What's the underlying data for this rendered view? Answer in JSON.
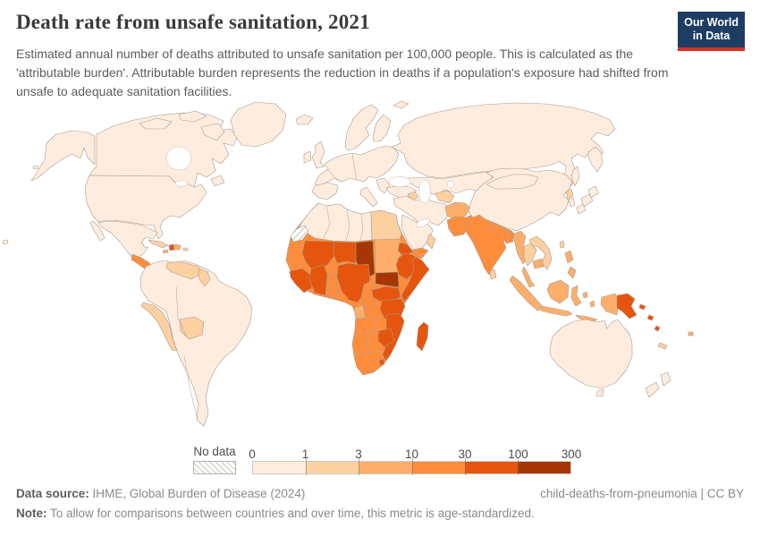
{
  "header": {
    "title": "Death rate from unsafe sanitation, 2021",
    "subtitle": "Estimated annual number of deaths attributed to unsafe sanitation per 100,000 people. This is calculated as the 'attributable burden'. Attributable burden represents the reduction in deaths if a population's exposure had shifted from unsafe to adequate sanitation facilities.",
    "logo": {
      "line1": "Our World",
      "line2": "in Data",
      "bg_color": "#1d3d63",
      "accent_color": "#d93025"
    }
  },
  "legend": {
    "no_data_label": "No data",
    "tick_labels": [
      "0",
      "1",
      "3",
      "10",
      "30",
      "100",
      "300"
    ],
    "colors": [
      "#feedde",
      "#fdd0a2",
      "#fdae6b",
      "#fd8d3c",
      "#e6550d",
      "#a63603"
    ]
  },
  "footer": {
    "source_label": "Data source:",
    "source_text": " IHME, Global Burden of Disease (2024)",
    "attribution": "child-deaths-from-pneumonia | CC BY",
    "note_label": "Note:",
    "note_text": " To allow for comparisons between countries and over time, this metric is age-standardized."
  },
  "chart_data": {
    "type": "choropleth",
    "title": "Death rate from unsafe sanitation, 2021",
    "metric": "Deaths attributed to unsafe sanitation per 100,000 people (age-standardized)",
    "legend_scale": [
      0,
      1,
      3,
      10,
      30,
      100,
      300
    ],
    "bucket_ranges": [
      "0-1",
      "1-3",
      "3-10",
      "10-30",
      "30-100",
      "100-300"
    ],
    "palette": [
      "#feedde",
      "#fdd0a2",
      "#fdae6b",
      "#fd8d3c",
      "#e6550d",
      "#a63603"
    ],
    "no_data_regions": [
      "western-sahara"
    ],
    "regions": {
      "united-states": 0,
      "canada": 0,
      "greenland": 0,
      "mexico": 0,
      "central-america": 3,
      "cuba": 1,
      "haiti": 4,
      "dominican-republic": 2,
      "jamaica": 2,
      "puerto-rico": 1,
      "south-america-mainland": 0,
      "peru": 1,
      "venezuela": 1,
      "guyana": 1,
      "bolivia": 1,
      "iceland": 0,
      "united-kingdom": 0,
      "ireland": 0,
      "scandinavia": 0,
      "finland": 0,
      "europe": 0,
      "iberia": 0,
      "italy": 0,
      "balkans": 0,
      "svalbard": 0,
      "russia": 0,
      "kazakhstan-central-asia": 0,
      "turkey": 0,
      "azerbaijan": 1,
      "turkmenistan": 1,
      "iran-iraq": 0,
      "saudi-arabia": 0,
      "yemen": 3,
      "oman": 1,
      "afghanistan": 2,
      "pakistan": 3,
      "india": 3,
      "bangladesh": 3,
      "sri-lanka": 1,
      "china": 0,
      "mongolia": 0,
      "north-korea": 1,
      "south-korea": 0,
      "japan": 0,
      "taiwan": 1,
      "myanmar": 2,
      "thailand": 1,
      "laos-vietnam": 1,
      "cambodia": 2,
      "malaysia": 2,
      "indonesia": 2,
      "philippines": 2,
      "papua-new-guinea": 4,
      "solomon-islands": 4,
      "fiji": 2,
      "new-caledonia": 1,
      "australia": 0,
      "new-zealand": 0,
      "africa-interior": 3,
      "north-africa": 0,
      "egypt": 1,
      "western-sahara": "no-data",
      "mali": 4,
      "niger": 4,
      "chad": 5,
      "sudan": 2,
      "south-sudan": 5,
      "eritrea": 4,
      "ethiopia": 4,
      "somalia": 4,
      "guinea-region": 4,
      "cote-divoire-burkina-faso": 4,
      "ghana": 3,
      "nigeria": 4,
      "cameroon": 3,
      "central-african-republic": 4,
      "gabon": 2,
      "tanzania": 4,
      "mozambique-malawi": 4,
      "zimbabwe": 4,
      "lesotho": 4,
      "madagascar": 4,
      "pacific-fragment": 0
    }
  }
}
